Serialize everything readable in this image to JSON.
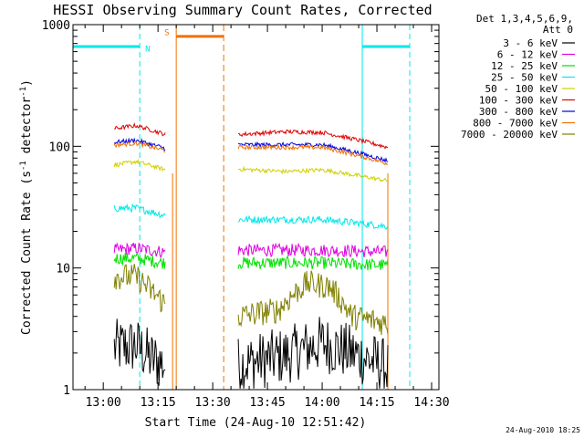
{
  "chart_data": {
    "type": "line",
    "title": "HESSI Observing Summary Count Rates, Corrected",
    "xlabel": "Start Time (24-Aug-10 12:51:42)",
    "ylabel": "Corrected Count Rate (s",
    "ylabel_sup1": "-1",
    "ylabel_mid": " detector",
    "ylabel_sup2": "-1",
    "ylabel_end": ")",
    "yscale": "log",
    "xlim": [
      "12:51:42",
      "14:32:00"
    ],
    "ylim": [
      1,
      1000
    ],
    "x_tick_labels": [
      "13:00",
      "13:15",
      "13:30",
      "13:45",
      "14:00",
      "14:15",
      "14:30"
    ],
    "y_tick_labels": [
      "1",
      "10",
      "100",
      "1000"
    ],
    "legend_placement": "right",
    "legend_header": [
      "Det 1,3,4,5,6,9,",
      "Att 0"
    ],
    "series": [
      {
        "name": "3 - 6 keV",
        "color": "#000000",
        "segments": [
          [
            [
              "13:03",
              2.2
            ],
            [
              "13:09",
              2.3
            ],
            [
              "13:13",
              1.8
            ],
            [
              "13:17",
              1.6
            ]
          ],
          [
            [
              "13:37",
              1.6
            ],
            [
              "13:50",
              1.9
            ],
            [
              "14:00",
              2.4
            ],
            [
              "14:08",
              2.0
            ],
            [
              "14:18",
              1.5
            ]
          ]
        ]
      },
      {
        "name": "6 - 12 keV",
        "color": "#e000e0",
        "segments": [
          [
            [
              "13:03",
              14
            ],
            [
              "13:09",
              14.5
            ],
            [
              "13:17",
              13.5
            ]
          ],
          [
            [
              "13:37",
              14
            ],
            [
              "14:00",
              14
            ],
            [
              "14:18",
              13.5
            ]
          ]
        ]
      },
      {
        "name": "12 - 25 keV",
        "color": "#00e000",
        "segments": [
          [
            [
              "13:03",
              12
            ],
            [
              "13:09",
              12
            ],
            [
              "13:17",
              11
            ]
          ],
          [
            [
              "13:37",
              11
            ],
            [
              "14:00",
              11
            ],
            [
              "14:18",
              10.5
            ]
          ]
        ]
      },
      {
        "name": "25 - 50 keV",
        "color": "#00e8e8",
        "segments": [
          [
            [
              "13:03",
              31
            ],
            [
              "13:09",
              31
            ],
            [
              "13:17",
              27
            ]
          ],
          [
            [
              "13:37",
              25
            ],
            [
              "14:00",
              25
            ],
            [
              "14:18",
              22
            ]
          ]
        ]
      },
      {
        "name": "50 - 100 keV",
        "color": "#d0d000",
        "segments": [
          [
            [
              "13:03",
              70
            ],
            [
              "13:09",
              75
            ],
            [
              "13:17",
              64
            ]
          ],
          [
            [
              "13:37",
              65
            ],
            [
              "13:50",
              62
            ],
            [
              "14:00",
              64
            ],
            [
              "14:18",
              52
            ]
          ]
        ]
      },
      {
        "name": "100 - 300 keV",
        "color": "#e00000",
        "segments": [
          [
            [
              "13:03",
              140
            ],
            [
              "13:09",
              148
            ],
            [
              "13:17",
              125
            ]
          ],
          [
            [
              "13:37",
              125
            ],
            [
              "13:50",
              132
            ],
            [
              "14:00",
              130
            ],
            [
              "14:18",
              98
            ]
          ]
        ]
      },
      {
        "name": "300 - 800 keV",
        "color": "#0000e0",
        "segments": [
          [
            [
              "13:03",
              108
            ],
            [
              "13:09",
              112
            ],
            [
              "13:17",
              96
            ]
          ],
          [
            [
              "13:37",
              103
            ],
            [
              "14:00",
              103
            ],
            [
              "14:18",
              76
            ]
          ]
        ]
      },
      {
        "name": "800 - 7000 keV",
        "color": "#f07000",
        "segments": [
          [
            [
              "13:03",
              102
            ],
            [
              "13:09",
              106
            ],
            [
              "13:17",
              92
            ]
          ],
          [
            [
              "13:37",
              98
            ],
            [
              "14:00",
              98
            ],
            [
              "14:18",
              72
            ]
          ]
        ]
      },
      {
        "name": "7000 - 20000 keV",
        "color": "#808000",
        "segments": [
          [
            [
              "13:03",
              8.5
            ],
            [
              "13:09",
              8.5
            ],
            [
              "13:13",
              6.5
            ],
            [
              "13:17",
              5
            ]
          ],
          [
            [
              "13:37",
              4
            ],
            [
              "13:48",
              4.5
            ],
            [
              "13:56",
              7.5
            ],
            [
              "14:02",
              7
            ],
            [
              "14:08",
              4
            ],
            [
              "14:18",
              3.5
            ]
          ]
        ]
      }
    ],
    "annotations": {
      "night_label": "N",
      "saa_label": "S",
      "night_color": "#00e8e8",
      "saa_color": "#f07000"
    },
    "footer_date": "24-Aug-2010 18:25"
  }
}
